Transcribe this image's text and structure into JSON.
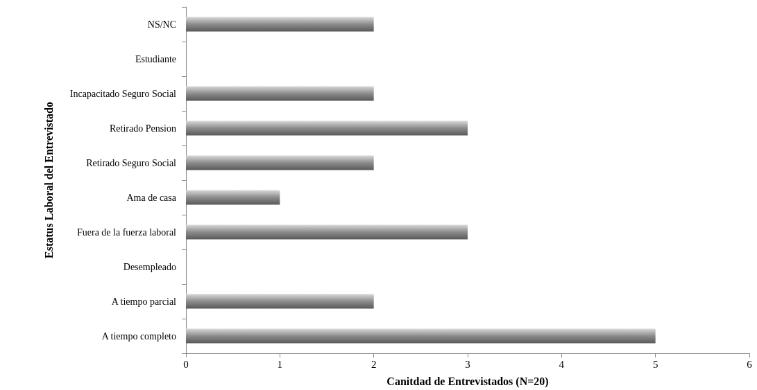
{
  "chart_data": {
    "type": "bar",
    "orientation": "horizontal",
    "xlabel": "Canitdad de Entrevistados (N=20)",
    "ylabel": "Estatus Laboral del Entrevistado",
    "categories": [
      "NS/NC",
      "Estudiante",
      "Incapacitado Seguro Social",
      "Retirado Pension",
      "Retirado Seguro Social",
      "Ama de casa",
      "Fuera de la fuerza laboral",
      "Desempleado",
      "A tiempo parcial",
      "A tiempo completo"
    ],
    "values": [
      2,
      0,
      2,
      3,
      2,
      1,
      3,
      0,
      2,
      5
    ],
    "color": "#8c8c8c",
    "xlim": [
      0,
      6
    ],
    "xticks": [
      0,
      1,
      2,
      3,
      4,
      5,
      6
    ],
    "grid": false
  }
}
